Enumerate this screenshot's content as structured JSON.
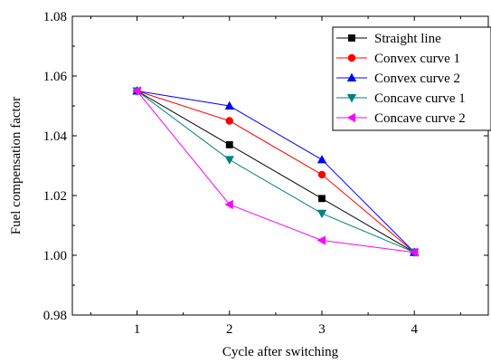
{
  "chart_data": {
    "type": "line",
    "xlabel": "Cycle after switching",
    "ylabel": "Fuel compensation factor",
    "x": [
      1,
      2,
      3,
      4
    ],
    "xlim": [
      0.3,
      4.8
    ],
    "ylim": [
      0.98,
      1.08
    ],
    "x_ticks": [
      "1",
      "2",
      "3",
      "4"
    ],
    "y_ticks": [
      "0.98",
      "1.00",
      "1.02",
      "1.04",
      "1.06",
      "1.08"
    ],
    "grid": false,
    "legend_position": "top-right",
    "series": [
      {
        "name": "Straight line",
        "color": "#000000",
        "marker": "square",
        "values": [
          1.055,
          1.037,
          1.019,
          1.001
        ]
      },
      {
        "name": "Convex curve 1",
        "color": "#ff0000",
        "marker": "circle",
        "values": [
          1.055,
          1.045,
          1.027,
          1.001
        ]
      },
      {
        "name": "Convex curve 2",
        "color": "#0000ff",
        "marker": "triangle-up",
        "values": [
          1.055,
          1.05,
          1.032,
          1.001
        ]
      },
      {
        "name": "Concave curve 1",
        "color": "#008080",
        "marker": "triangle-down",
        "values": [
          1.055,
          1.032,
          1.014,
          1.001
        ]
      },
      {
        "name": "Concave curve 2",
        "color": "#ff00ff",
        "marker": "triangle-left",
        "values": [
          1.055,
          1.017,
          1.005,
          1.001
        ]
      }
    ]
  }
}
